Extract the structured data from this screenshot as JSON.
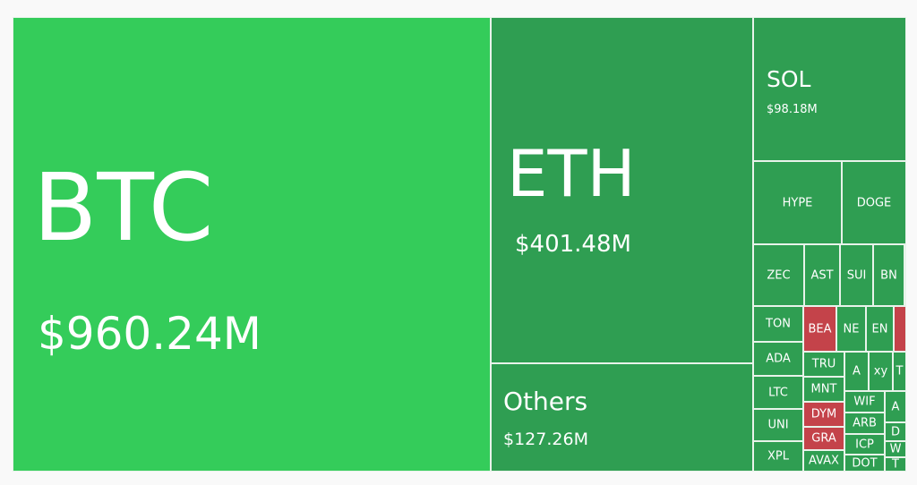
{
  "chart_data": {
    "type": "treemap",
    "colors": {
      "primary": "#34cc5a",
      "gain": "#2f9e52",
      "loss": "#c4434a"
    },
    "tiles": [
      {
        "label": "BTC",
        "value": "$960.24M",
        "color": "primary"
      },
      {
        "label": "ETH",
        "value": "$401.48M",
        "color": "gain"
      },
      {
        "label": "Others",
        "value": "$127.26M",
        "color": "gain"
      },
      {
        "label": "SOL",
        "value": "$98.18M",
        "color": "gain"
      },
      {
        "label": "HYPE",
        "color": "gain"
      },
      {
        "label": "DOGE",
        "color": "gain"
      },
      {
        "label": "ZEC",
        "color": "gain"
      },
      {
        "label": "AST",
        "color": "gain"
      },
      {
        "label": "SUI",
        "color": "gain"
      },
      {
        "label": "BN",
        "color": "gain"
      },
      {
        "label": "",
        "color": "gain"
      },
      {
        "label": "TON",
        "color": "gain"
      },
      {
        "label": "BEA",
        "color": "loss"
      },
      {
        "label": "NE",
        "color": "gain"
      },
      {
        "label": "EN",
        "color": "gain"
      },
      {
        "label": "",
        "color": "loss"
      },
      {
        "label": "ADA",
        "color": "gain"
      },
      {
        "label": "LTC",
        "color": "gain"
      },
      {
        "label": "UNI",
        "color": "gain"
      },
      {
        "label": "XPL",
        "color": "gain"
      },
      {
        "label": "TRU",
        "color": "gain"
      },
      {
        "label": "MNT",
        "color": "gain"
      },
      {
        "label": "DYM",
        "color": "loss"
      },
      {
        "label": "GRA",
        "color": "loss"
      },
      {
        "label": "AVAX",
        "color": "gain"
      },
      {
        "label": "A",
        "color": "gain"
      },
      {
        "label": "xy",
        "color": "gain"
      },
      {
        "label": "T",
        "color": "gain"
      },
      {
        "label": "WIF",
        "color": "gain"
      },
      {
        "label": "ARB",
        "color": "gain"
      },
      {
        "label": "ICP",
        "color": "gain"
      },
      {
        "label": "DOT",
        "color": "gain"
      },
      {
        "label": "A",
        "color": "gain"
      },
      {
        "label": "D",
        "color": "gain"
      },
      {
        "label": "W",
        "color": "gain"
      },
      {
        "label": "T",
        "color": "gain"
      }
    ]
  }
}
